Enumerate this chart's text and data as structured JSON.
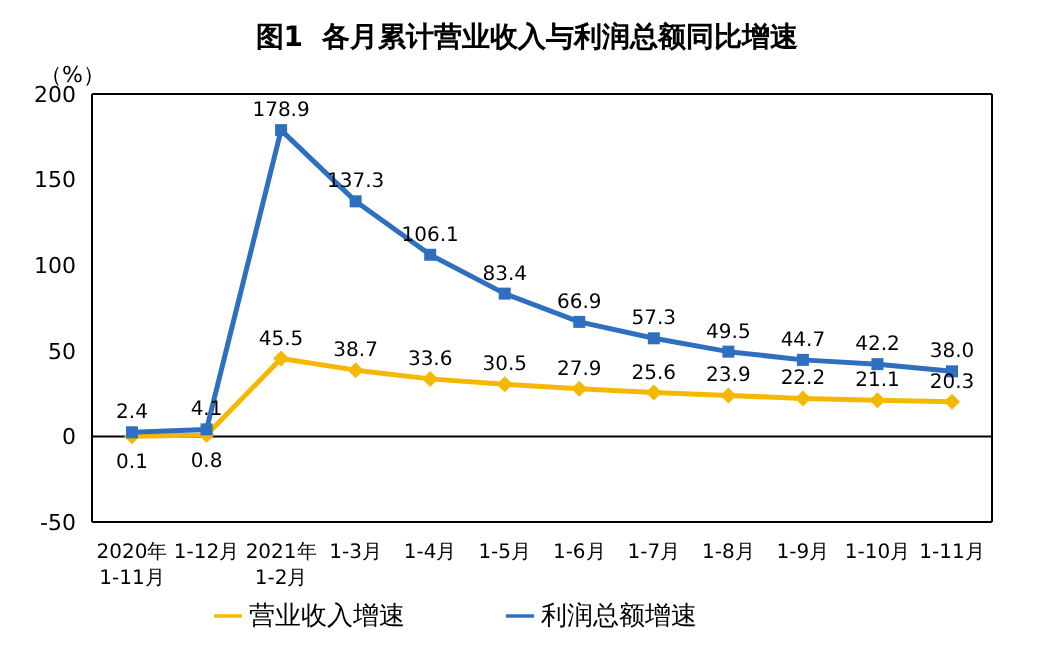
{
  "chart_data": {
    "type": "line",
    "title": "图1  各月累计营业收入与利润总额同比增速",
    "ylabel": "（%）",
    "categories": [
      "2020年\n1-11月",
      "1-12月",
      "2021年\n1-2月",
      "1-3月",
      "1-4月",
      "1-5月",
      "1-6月",
      "1-7月",
      "1-8月",
      "1-9月",
      "1-10月",
      "1-11月"
    ],
    "series": [
      {
        "name": "营业收入增速",
        "color": "#f5b800",
        "marker": "diamond",
        "values": [
          0.1,
          0.8,
          45.5,
          38.7,
          33.6,
          30.5,
          27.9,
          25.6,
          23.9,
          22.2,
          21.1,
          20.3
        ]
      },
      {
        "name": "利润总额增速",
        "color": "#2e6fc0",
        "marker": "square",
        "values": [
          2.4,
          4.1,
          178.9,
          137.3,
          106.1,
          83.4,
          66.9,
          57.3,
          49.5,
          44.7,
          42.2,
          38.0
        ],
        "value_labels": [
          "2.4",
          "4.1",
          "178.9",
          "137.3",
          "106.1",
          "83.4",
          "66.9",
          "57.3",
          "49.5",
          "44.7",
          "42.2",
          "38.0"
        ]
      }
    ],
    "ylim": [
      -50,
      200
    ],
    "yticks": [
      -50,
      0,
      50,
      100,
      150,
      200
    ],
    "grid": false,
    "ref_lines": [
      {
        "axis": "y",
        "value": 0,
        "color": "#000000"
      }
    ],
    "legend": "bottom",
    "data_labels": true,
    "line_style": "solid"
  }
}
